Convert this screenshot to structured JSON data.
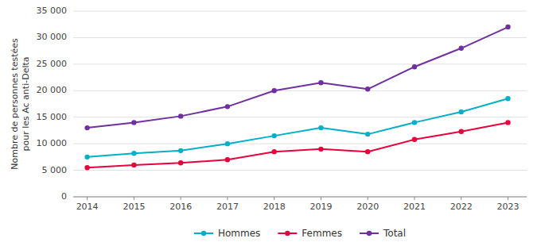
{
  "chart_data": {
    "type": "line",
    "ylabel": "Nombre de personnes testées\npour les Ac anti-Delta",
    "x": [
      2014,
      2015,
      2016,
      2017,
      2018,
      2019,
      2020,
      2021,
      2022,
      2023
    ],
    "xlim": [
      2013.7,
      2023.4
    ],
    "xticks": [
      2014,
      2015,
      2016,
      2017,
      2018,
      2019,
      2020,
      2021,
      2022,
      2023
    ],
    "ylim": [
      0,
      35000
    ],
    "yticks": [
      0,
      {
        "value": 5000,
        "label": "5 000"
      },
      {
        "value": 10000,
        "label": "10 000"
      },
      {
        "value": 15000,
        "label": "15 000"
      },
      {
        "value": 20000,
        "label": "20 000"
      },
      {
        "value": 25000,
        "label": "25 000"
      },
      {
        "value": 30000,
        "label": "30 000"
      },
      {
        "value": 35000,
        "label": "35 000"
      }
    ],
    "grid": true,
    "legend": "bottom",
    "marker": "circle",
    "series": [
      {
        "name": "Hommes",
        "color": "#00b0c8",
        "values": [
          7500,
          8200,
          8700,
          10000,
          11500,
          13000,
          11800,
          14000,
          16000,
          18500
        ]
      },
      {
        "name": "Femmes",
        "color": "#e8003c",
        "values": [
          5500,
          6000,
          6400,
          7000,
          8500,
          9000,
          8500,
          10800,
          12300,
          14000
        ]
      },
      {
        "name": "Total",
        "color": "#7030a0",
        "values": [
          13000,
          14000,
          15200,
          17000,
          20000,
          21500,
          20300,
          24500,
          28000,
          32000
        ]
      }
    ]
  }
}
